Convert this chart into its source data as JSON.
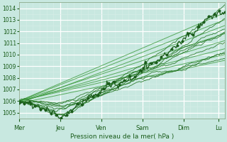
{
  "xlabel": "Pression niveau de la mer( hPa )",
  "bg_color": "#c8e8e0",
  "grid_major_color": "#ffffff",
  "grid_minor_color": "#d8eee8",
  "line_color_dark": "#1a5c1a",
  "line_color_medium": "#2a7a2a",
  "line_color_light": "#3a9a3a",
  "ylim": [
    1004.5,
    1014.5
  ],
  "ytick_vals": [
    1005,
    1006,
    1007,
    1008,
    1009,
    1010,
    1011,
    1012,
    1013,
    1014
  ],
  "x_day_labels": [
    "Mer",
    "Jeu",
    "Ven",
    "Sam",
    "Dim",
    "Lu"
  ],
  "x_day_positions": [
    0.0,
    1.0,
    2.0,
    3.0,
    4.0,
    4.85
  ],
  "xlim": [
    0,
    5.0
  ],
  "num_points": 200
}
